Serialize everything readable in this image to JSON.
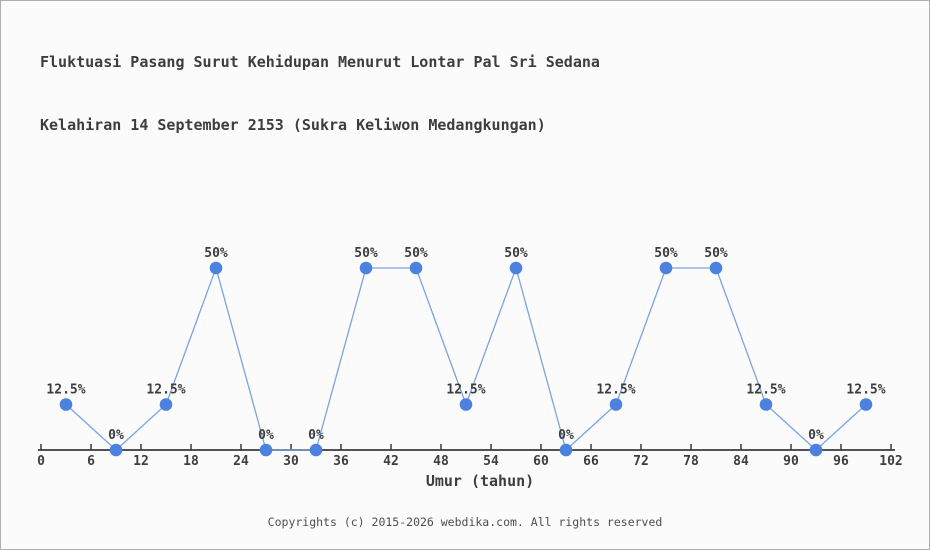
{
  "title": {
    "line1": "Fluktuasi Pasang Surut Kehidupan Menurut Lontar Pal Sri Sedana",
    "line2": "Kelahiran 14 September 2153 (Sukra Keliwon Medangkungan)"
  },
  "footer": {
    "copyright": "Copyrights (c) 2015-2026 webdika.com. All rights reserved"
  },
  "chart_data": {
    "type": "line",
    "title": "Fluktuasi Pasang Surut Kehidupan Menurut Lontar Pal Sri Sedana Kelahiran 14 September 2153 (Sukra Keliwon Medangkungan)",
    "xlabel": "Umur (tahun)",
    "ylabel": "",
    "x": [
      3,
      9,
      15,
      21,
      27,
      33,
      39,
      45,
      51,
      57,
      63,
      69,
      75,
      81,
      87,
      93,
      99
    ],
    "values": [
      12.5,
      0,
      12.5,
      50,
      0,
      0,
      50,
      50,
      12.5,
      50,
      0,
      12.5,
      50,
      50,
      12.5,
      0,
      12.5
    ],
    "point_labels": [
      "12.5%",
      "0%",
      "12.5%",
      "50%",
      "0%",
      "0%",
      "50%",
      "50%",
      "12.5%",
      "50%",
      "0%",
      "12.5%",
      "50%",
      "50%",
      "12.5%",
      "0%",
      "12.5%"
    ],
    "x_ticks": [
      0,
      6,
      12,
      18,
      24,
      30,
      36,
      42,
      48,
      54,
      60,
      66,
      72,
      78,
      84,
      90,
      96,
      102
    ],
    "xlim": [
      0,
      102
    ],
    "ylim": [
      0,
      100
    ],
    "grid": false,
    "legend": false,
    "colors": {
      "marker": "#4b82e0",
      "line": "#7aa3e0",
      "axis": "#3a3a3a",
      "text": "#3d3d3d"
    }
  }
}
